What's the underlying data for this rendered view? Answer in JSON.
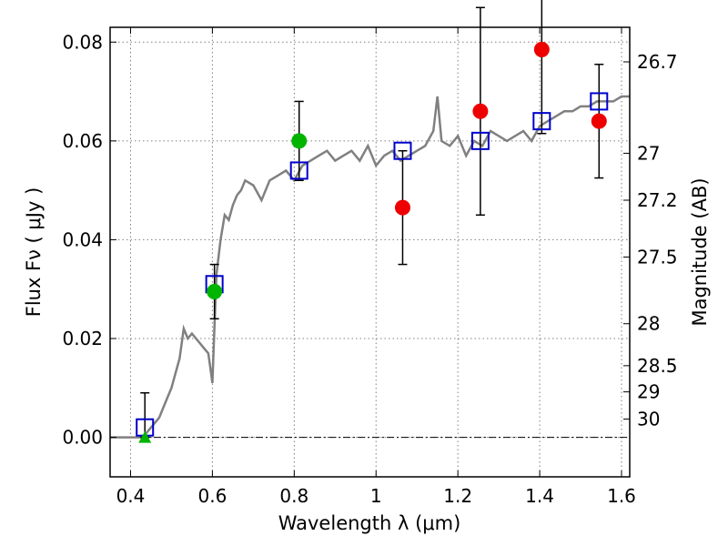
{
  "chart_data": {
    "type": "scatter",
    "xlabel": "Wavelength  λ (μm)",
    "ylabel": "Flux  Fν  ( μJy )",
    "ylabel_right": "Magnitude (AB)",
    "xlim": [
      0.35,
      1.62
    ],
    "ylim": [
      -0.008,
      0.083
    ],
    "grid": true,
    "x_ticks": [
      {
        "value": 0.4,
        "label": "0.4"
      },
      {
        "value": 0.6,
        "label": "0.6"
      },
      {
        "value": 0.8,
        "label": "0.8"
      },
      {
        "value": 1.0,
        "label": "1"
      },
      {
        "value": 1.2,
        "label": "1.2"
      },
      {
        "value": 1.4,
        "label": "1.4"
      },
      {
        "value": 1.6,
        "label": "1.6"
      }
    ],
    "y_ticks": [
      {
        "value": 0.0,
        "label": "0.00"
      },
      {
        "value": 0.02,
        "label": "0.02"
      },
      {
        "value": 0.04,
        "label": "0.04"
      },
      {
        "value": 0.06,
        "label": "0.06"
      },
      {
        "value": 0.08,
        "label": "0.08"
      }
    ],
    "mag_ticks": [
      {
        "value": 0.076,
        "label": "26.7"
      },
      {
        "value": 0.0575,
        "label": "27"
      },
      {
        "value": 0.048,
        "label": "27.2"
      },
      {
        "value": 0.0365,
        "label": "27.5"
      },
      {
        "value": 0.023,
        "label": "28"
      },
      {
        "value": 0.0145,
        "label": "28.5"
      },
      {
        "value": 0.0092,
        "label": "29"
      },
      {
        "value": 0.0037,
        "label": "30"
      }
    ],
    "zero_line": 0.0,
    "model_spectrum": {
      "color": "#808080",
      "x": [
        0.35,
        0.43,
        0.44,
        0.45,
        0.46,
        0.47,
        0.48,
        0.49,
        0.5,
        0.51,
        0.52,
        0.53,
        0.54,
        0.55,
        0.56,
        0.57,
        0.58,
        0.59,
        0.595,
        0.6,
        0.605,
        0.61,
        0.62,
        0.63,
        0.64,
        0.65,
        0.66,
        0.67,
        0.68,
        0.7,
        0.72,
        0.74,
        0.76,
        0.78,
        0.8,
        0.82,
        0.84,
        0.86,
        0.88,
        0.9,
        0.92,
        0.94,
        0.96,
        0.98,
        1.0,
        1.02,
        1.04,
        1.06,
        1.08,
        1.1,
        1.12,
        1.14,
        1.15,
        1.16,
        1.18,
        1.2,
        1.22,
        1.24,
        1.26,
        1.28,
        1.3,
        1.32,
        1.34,
        1.36,
        1.38,
        1.4,
        1.42,
        1.44,
        1.46,
        1.48,
        1.5,
        1.52,
        1.54,
        1.56,
        1.58,
        1.6,
        1.62
      ],
      "y": [
        0.0,
        0.0,
        0.001,
        0.002,
        0.003,
        0.004,
        0.006,
        0.008,
        0.01,
        0.013,
        0.016,
        0.022,
        0.02,
        0.021,
        0.02,
        0.019,
        0.018,
        0.017,
        0.014,
        0.011,
        0.022,
        0.033,
        0.04,
        0.045,
        0.044,
        0.047,
        0.049,
        0.05,
        0.052,
        0.051,
        0.048,
        0.052,
        0.053,
        0.054,
        0.052,
        0.055,
        0.056,
        0.057,
        0.058,
        0.056,
        0.057,
        0.058,
        0.056,
        0.059,
        0.055,
        0.057,
        0.058,
        0.056,
        0.057,
        0.058,
        0.059,
        0.062,
        0.069,
        0.06,
        0.059,
        0.061,
        0.057,
        0.06,
        0.059,
        0.062,
        0.061,
        0.06,
        0.061,
        0.062,
        0.06,
        0.063,
        0.064,
        0.065,
        0.066,
        0.066,
        0.067,
        0.067,
        0.068,
        0.068,
        0.068,
        0.069,
        0.069
      ]
    },
    "series": [
      {
        "marker": "square-open",
        "color": "#0000cc",
        "x": [
          0.435,
          0.605,
          0.812,
          1.065,
          1.255,
          1.405,
          1.545
        ],
        "y": [
          0.002,
          0.031,
          0.054,
          0.058,
          0.06,
          0.064,
          0.068
        ]
      },
      {
        "marker": "circle",
        "color": "#00b400",
        "x": [
          0.605,
          0.812
        ],
        "y": [
          0.0295,
          0.06
        ],
        "err": [
          0.0055,
          0.008
        ]
      },
      {
        "marker": "triangle",
        "color": "#00b400",
        "x": [
          0.435
        ],
        "y": [
          0.0
        ],
        "err_up": [
          0.009
        ]
      },
      {
        "marker": "circle",
        "color": "#ee0000",
        "x": [
          1.065,
          1.255,
          1.405,
          1.545
        ],
        "y": [
          0.0465,
          0.066,
          0.0785,
          0.064
        ],
        "err": [
          0.0115,
          0.021,
          0.017,
          0.0115
        ]
      }
    ]
  }
}
